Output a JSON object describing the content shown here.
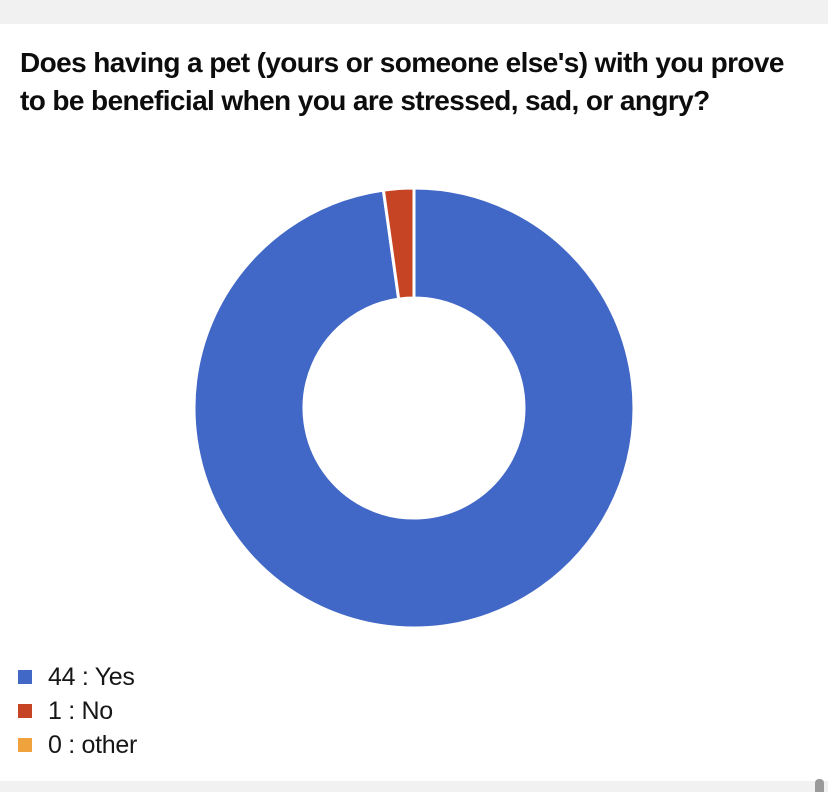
{
  "page": {
    "top_strip_color": "#f1f1f2",
    "bottom_strip_color": "#f1f1f2",
    "scrollbar_thumb_color": "#9a9a9a",
    "background_color": "#ffffff"
  },
  "chart_data": {
    "type": "pie",
    "subtype": "donut",
    "title": "Does having a pet (yours or someone else's) with you prove to be beneficial when you are stressed, sad, or angry?",
    "categories": [
      "Yes",
      "No",
      "other"
    ],
    "values": [
      44,
      1,
      0
    ],
    "total": 45,
    "colors": [
      "#4168c6",
      "#c64324",
      "#f0a23c"
    ],
    "slice_border_color": "#ffffff",
    "legend_position": "bottom-left",
    "legend": [
      {
        "label": "44 : Yes",
        "color": "#4168c6"
      },
      {
        "label": "1 : No",
        "color": "#c64324"
      },
      {
        "label": "0 : other",
        "color": "#f0a23c"
      }
    ]
  }
}
